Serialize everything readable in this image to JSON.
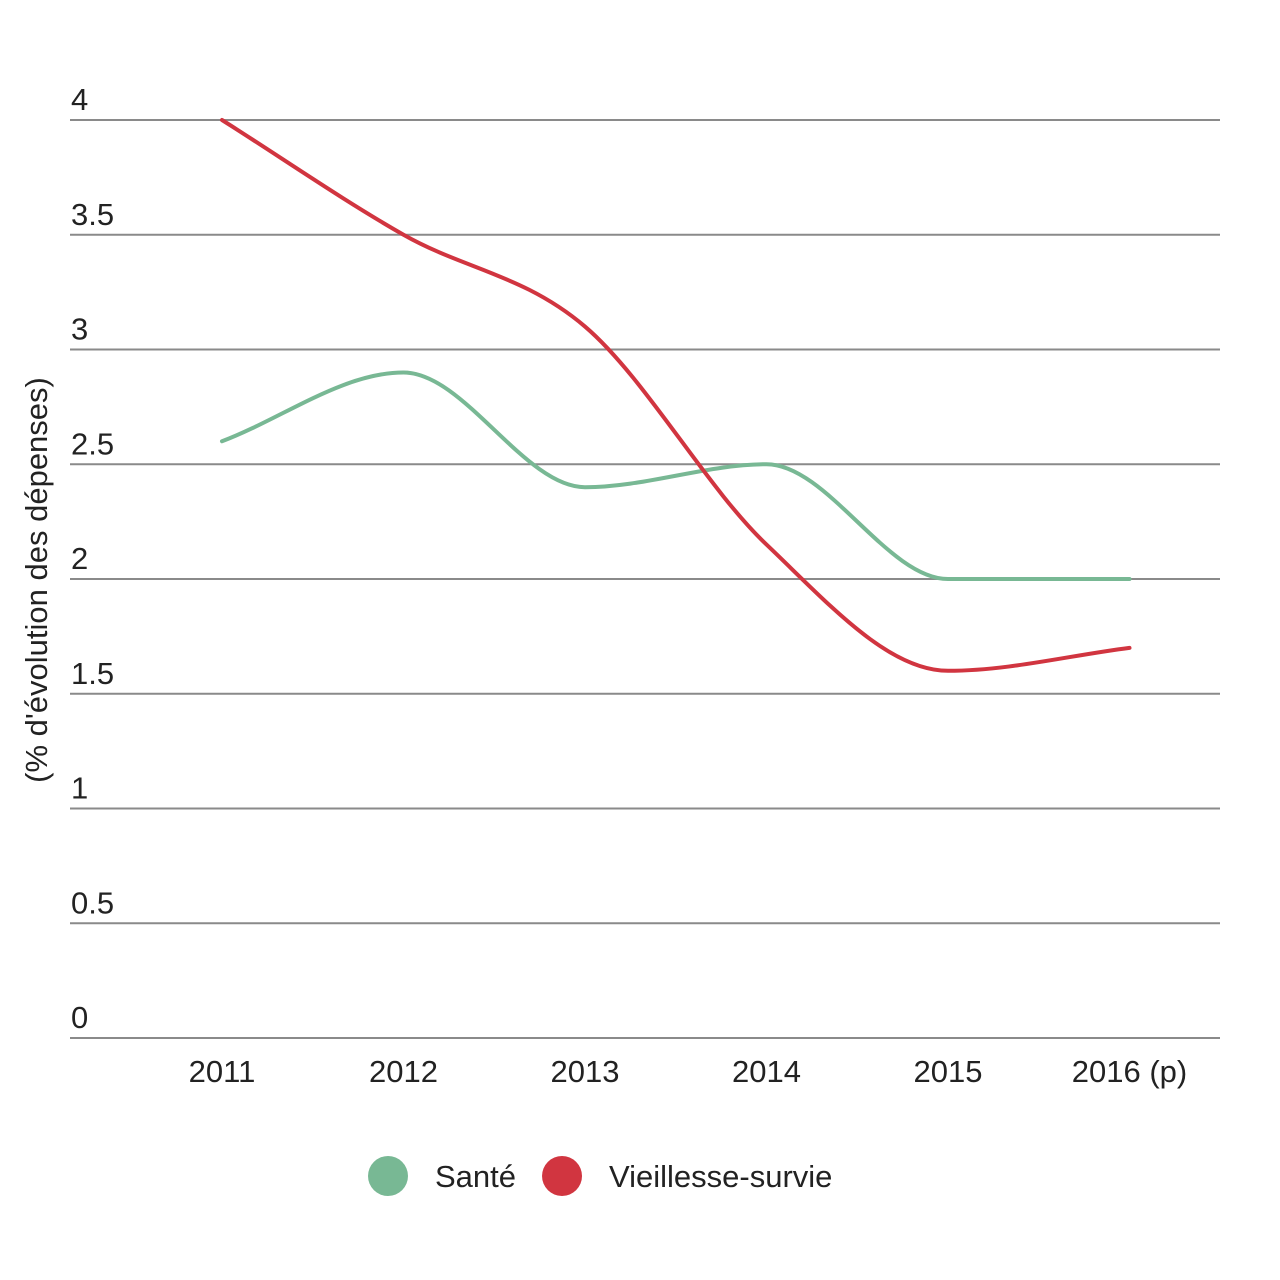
{
  "chart_data": {
    "type": "line",
    "title": "",
    "xlabel": "",
    "ylabel": "(% d'évolution des dépenses)",
    "categories": [
      "2011",
      "2012",
      "2013",
      "2014",
      "2015",
      "2016 (p)"
    ],
    "ylim": [
      0,
      4
    ],
    "yticks": [
      "0",
      "0.5",
      "1",
      "1.5",
      "2",
      "2.5",
      "3",
      "3.5",
      "4"
    ],
    "grid": true,
    "legend_position": "bottom-center",
    "series": [
      {
        "name": "Santé",
        "color": "#78b894",
        "values": [
          2.6,
          2.9,
          2.4,
          2.5,
          2.0,
          2.0
        ]
      },
      {
        "name": "Vieillesse-survie",
        "color": "#d13540",
        "values": [
          4.0,
          3.5,
          3.1,
          2.15,
          1.6,
          1.7
        ]
      }
    ]
  }
}
